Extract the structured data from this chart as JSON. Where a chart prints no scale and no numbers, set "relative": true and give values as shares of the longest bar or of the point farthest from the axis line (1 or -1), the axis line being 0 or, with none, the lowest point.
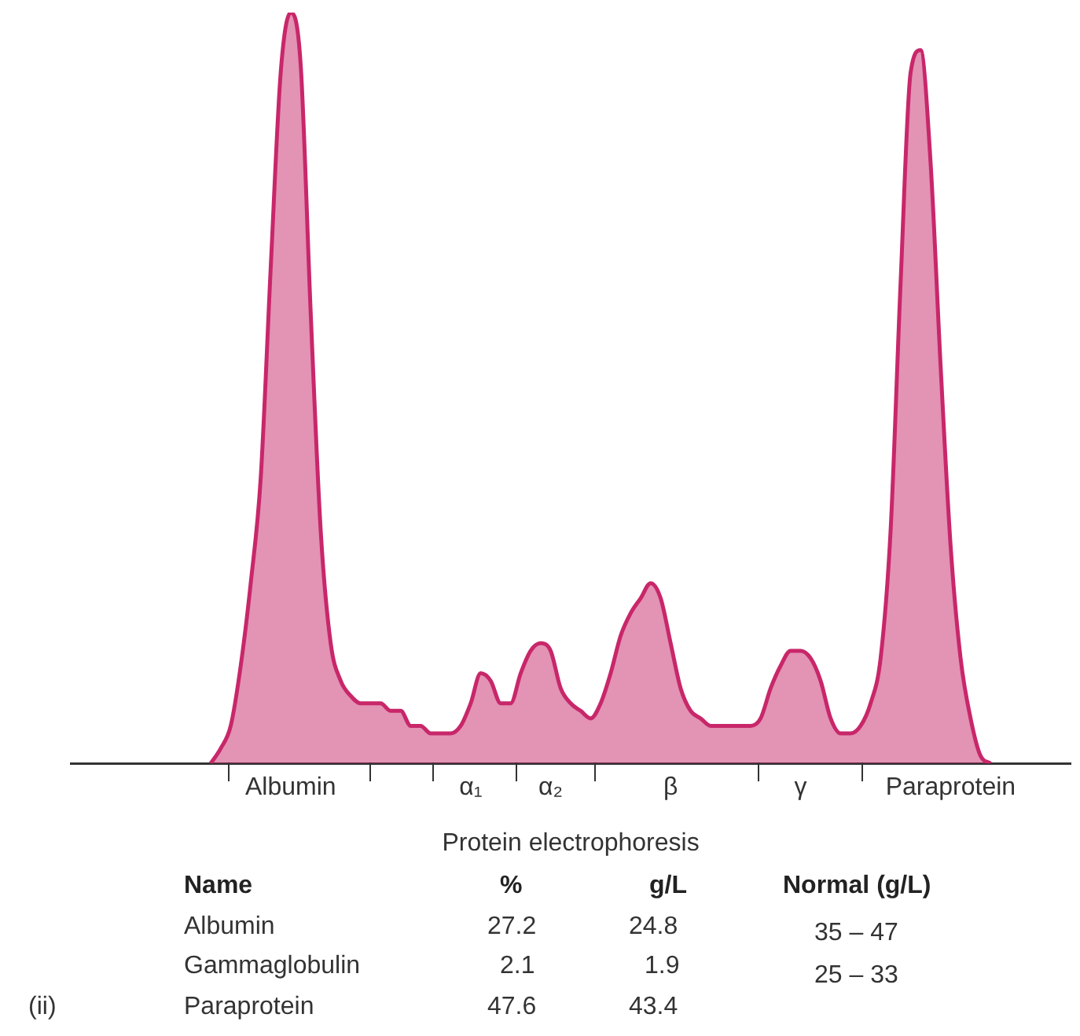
{
  "chart_data": {
    "type": "area",
    "relative": true,
    "xlabel": "Protein electrophoresis",
    "categories": [
      null,
      null,
      null,
      null,
      null,
      null,
      null,
      null,
      null,
      null,
      null,
      null,
      null,
      null,
      null,
      null,
      null,
      null,
      null,
      null,
      null,
      null,
      "Albumin",
      null,
      null,
      null,
      null,
      null,
      null,
      null,
      null,
      null,
      null,
      null,
      null,
      null,
      null,
      null,
      null,
      null,
      "α₁",
      null,
      null,
      null,
      null,
      null,
      null,
      null,
      "α₂",
      null,
      null,
      null,
      null,
      null,
      null,
      null,
      null,
      null,
      null,
      null,
      "β",
      null,
      null,
      null,
      null,
      null,
      null,
      null,
      null,
      null,
      null,
      null,
      null,
      "γ",
      null,
      null,
      null,
      null,
      null,
      null,
      null,
      null,
      null,
      null,
      null,
      null,
      null,
      null,
      "Paraprotein",
      null,
      null,
      null,
      null,
      null,
      null,
      null,
      null,
      null,
      null,
      null,
      null
    ],
    "series": [
      {
        "color": "#c8276a",
        "values": [
          null,
          null,
          null,
          null,
          null,
          null,
          null,
          null,
          null,
          null,
          null,
          null,
          null,
          null,
          0,
          0.02,
          0.05,
          0.13,
          0.24,
          0.38,
          0.66,
          0.92,
          1,
          0.93,
          0.6,
          0.31,
          0.16,
          0.11,
          0.09,
          0.08,
          0.08,
          0.08,
          0.07,
          0.07,
          0.05,
          0.05,
          0.04,
          0.04,
          0.04,
          0.05,
          0.08,
          0.12,
          0.11,
          0.08,
          0.08,
          0.12,
          0.15,
          0.16,
          0.15,
          0.1,
          0.08,
          0.07,
          0.06,
          0.08,
          0.12,
          0.17,
          0.2,
          0.22,
          0.24,
          0.22,
          0.16,
          0.1,
          0.07,
          0.06,
          0.05,
          0.05,
          0.05,
          0.05,
          0.05,
          0.06,
          0.1,
          0.13,
          0.15,
          0.15,
          0.14,
          0.11,
          0.06,
          0.04,
          0.04,
          0.05,
          0.08,
          0.14,
          0.31,
          0.64,
          0.92,
          0.95,
          0.8,
          0.53,
          0.29,
          0.14,
          0.06,
          0.01,
          0,
          null,
          null,
          null,
          null,
          null,
          null,
          null,
          null
        ]
      }
    ],
    "annotations": [
      "Name",
      "%",
      "g/L",
      "Normal (g/L)",
      "Albumin",
      "27.2",
      "24.8",
      "35 – 47",
      "Gammaglobulin",
      "2.1",
      "1.9",
      "25 – 33",
      "(ii)",
      "Paraprotein",
      "47.6",
      "43.4"
    ]
  }
}
